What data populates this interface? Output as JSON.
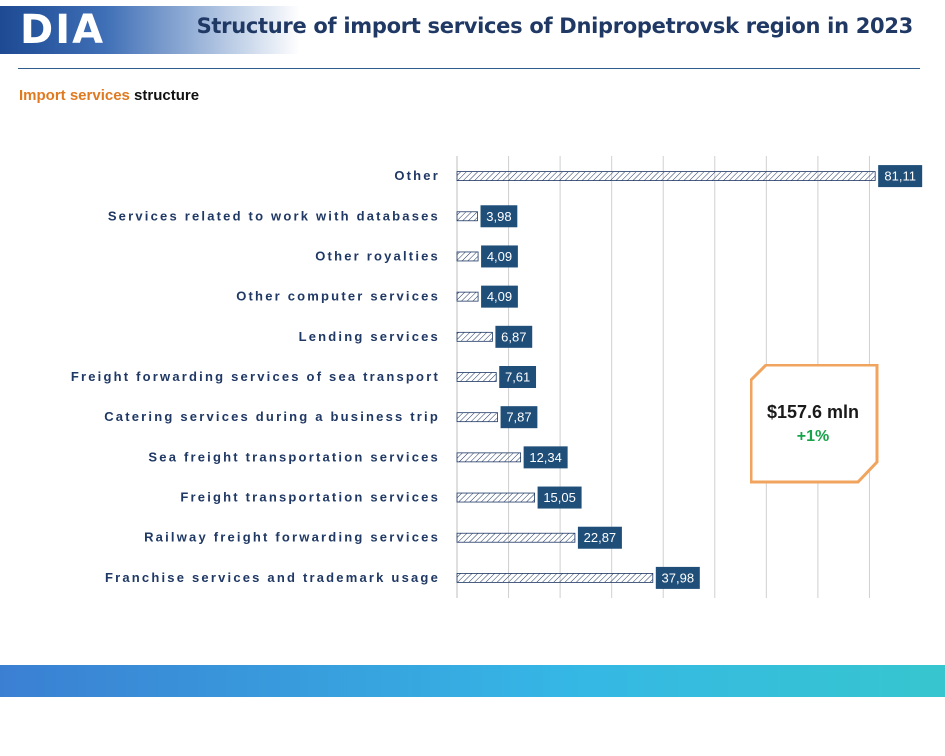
{
  "header": {
    "logo": "DIA",
    "title": "Structure of import services of Dnipropetrovsk region in 2023"
  },
  "subtitle": {
    "accent": "Import services",
    "rest": " structure"
  },
  "kpi": {
    "value": "$157.6 mln",
    "change": "+1%"
  },
  "chart_data": {
    "type": "bar",
    "orientation": "horizontal",
    "categories": [
      "Other",
      "Services related to work with databases",
      "Other royalties",
      "Other computer services",
      "Lending services",
      "Freight forwarding services of sea transport",
      "Catering services during a business trip",
      "Sea freight transportation services",
      "Freight transportation services",
      "Railway freight forwarding services",
      "Franchise services and trademark usage"
    ],
    "values": [
      81.11,
      3.98,
      4.09,
      4.09,
      6.87,
      7.61,
      7.87,
      12.34,
      15.05,
      22.87,
      37.98
    ],
    "value_labels": [
      "81,11",
      "3,98",
      "4,09",
      "4,09",
      "6,87",
      "7,61",
      "7,87",
      "12,34",
      "15,05",
      "22,87",
      "37,98"
    ],
    "xlim": [
      0,
      90
    ],
    "grid": true,
    "colors": {
      "bar_stroke": "#1f3864",
      "label_bg": "#1f4e79",
      "label_text": "#ffffff",
      "category_text": "#1f3864",
      "grid": "#d0d0d0"
    }
  }
}
